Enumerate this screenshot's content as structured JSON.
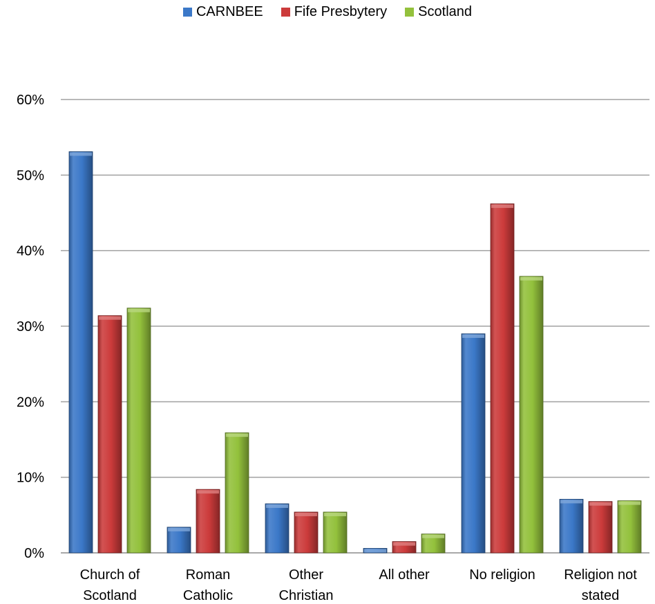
{
  "chart_data": {
    "type": "bar",
    "categories": [
      [
        "Church of",
        "Scotland"
      ],
      [
        "Roman",
        "Catholic"
      ],
      [
        "Other",
        "Christian"
      ],
      [
        "All other"
      ],
      [
        "No religion"
      ],
      [
        "Religion not",
        "stated"
      ]
    ],
    "series": [
      {
        "name": "CARNBEE",
        "color": "#3b78c8",
        "values": [
          53.1,
          3.4,
          6.5,
          0.6,
          29.0,
          7.1
        ]
      },
      {
        "name": "Fife Presbytery",
        "color": "#cc3b3b",
        "values": [
          31.4,
          8.4,
          5.4,
          1.5,
          46.2,
          6.8
        ]
      },
      {
        "name": "Scotland",
        "color": "#93c13c",
        "values": [
          32.4,
          15.9,
          5.4,
          2.5,
          36.6,
          6.9
        ]
      }
    ],
    "y_ticks": [
      "0%",
      "10%",
      "20%",
      "30%",
      "40%",
      "50%",
      "60%"
    ],
    "ylim": [
      0,
      60
    ],
    "grid": true,
    "legend_position": "top-center"
  }
}
